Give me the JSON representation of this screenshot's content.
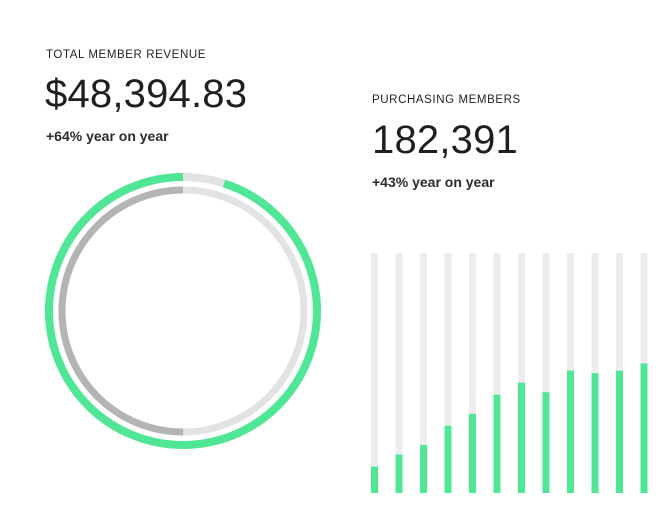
{
  "revenue": {
    "label": "TOTAL MEMBER REVENUE",
    "value": "$48,394.83",
    "change": "+64% year on year"
  },
  "members": {
    "label": "PURCHASING MEMBERS",
    "value": "182,391",
    "change": "+43% year on year"
  },
  "colors": {
    "accent_green": "#4fe695",
    "track_light": "#e3e3e3",
    "track_gray": "#b4b4b4",
    "bar_track": "#ededed"
  },
  "ring": {
    "outer_progress": 0.95,
    "inner_progress": 0.5
  },
  "bars": {
    "fill_fractions": [
      0.11,
      0.16,
      0.2,
      0.28,
      0.33,
      0.41,
      0.46,
      0.42,
      0.51,
      0.5,
      0.51,
      0.54
    ]
  }
}
